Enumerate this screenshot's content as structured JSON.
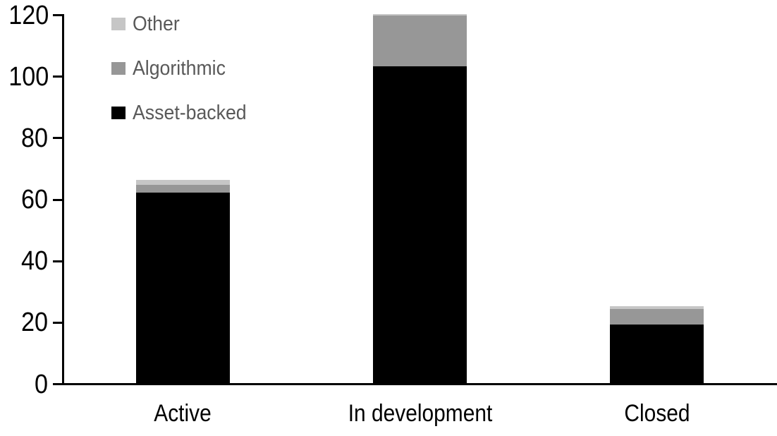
{
  "chart_data": {
    "type": "bar",
    "stacked": true,
    "title": "",
    "categories": [
      "Active",
      "In development",
      "Closed"
    ],
    "series": [
      {
        "name": "Asset-backed",
        "color": "#000000",
        "values": [
          62,
          103,
          19
        ]
      },
      {
        "name": "Algorithmic",
        "color": "#979797",
        "values": [
          2.5,
          16.5,
          5
        ]
      },
      {
        "name": "Other",
        "color": "#c6c6c6",
        "values": [
          1.5,
          0.5,
          1
        ]
      }
    ],
    "totals": [
      66,
      120,
      25
    ],
    "xlabel": "",
    "ylabel": "",
    "y_axis": {
      "min": 0,
      "max": 120,
      "tick_step": 20,
      "ticks": [
        0,
        20,
        40,
        60,
        80,
        100,
        120
      ]
    },
    "gridlines": false,
    "legend": {
      "position": "top-left",
      "items": [
        {
          "label": "Other",
          "color": "#c6c6c6"
        },
        {
          "label": "Algorithmic",
          "color": "#979797"
        },
        {
          "label": "Asset-backed",
          "color": "#000000"
        }
      ]
    },
    "colors": {
      "axis": "#000000",
      "tick_label": "#000000",
      "category_label": "#000000",
      "legend_text": "#595959",
      "background": "#ffffff"
    }
  }
}
